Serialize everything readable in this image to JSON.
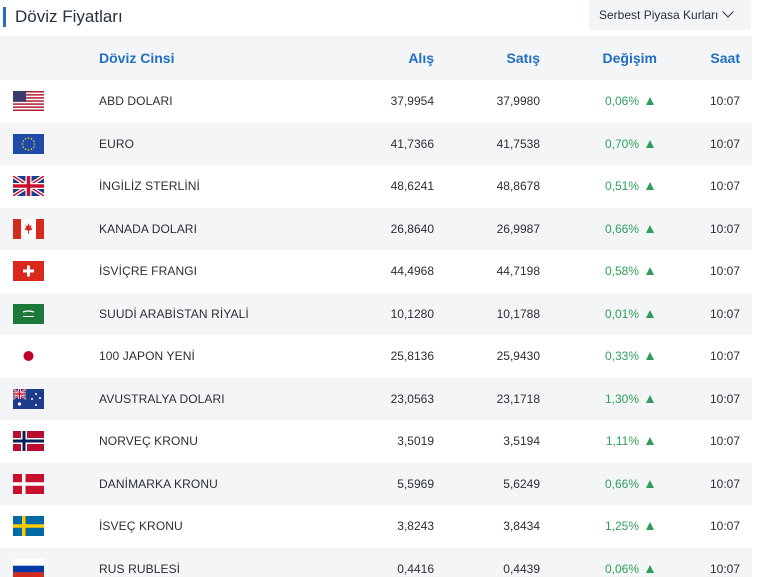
{
  "header": {
    "title": "Döviz Fiyatları",
    "market_select": "Serbest Piyasa Kurları"
  },
  "columns": {
    "currency": "Döviz Cinsi",
    "buy": "Alış",
    "sell": "Satış",
    "change": "Değişim",
    "time": "Saat"
  },
  "rows": [
    {
      "flag": "us-flag-icon",
      "name": "ABD DOLARI",
      "buy": "37,9954",
      "sell": "37,9980",
      "change": "0,06%",
      "trend": "up",
      "time": "10:07"
    },
    {
      "flag": "eu-flag-icon",
      "name": "EURO",
      "buy": "41,7366",
      "sell": "41,7538",
      "change": "0,70%",
      "trend": "up",
      "time": "10:07"
    },
    {
      "flag": "gb-flag-icon",
      "name": "İNGİLİZ STERLİNİ",
      "buy": "48,6241",
      "sell": "48,8678",
      "change": "0,51%",
      "trend": "up",
      "time": "10:07"
    },
    {
      "flag": "ca-flag-icon",
      "name": "KANADA DOLARI",
      "buy": "26,8640",
      "sell": "26,9987",
      "change": "0,66%",
      "trend": "up",
      "time": "10:07"
    },
    {
      "flag": "ch-flag-icon",
      "name": "İSVİÇRE FRANGI",
      "buy": "44,4968",
      "sell": "44,7198",
      "change": "0,58%",
      "trend": "up",
      "time": "10:07"
    },
    {
      "flag": "sa-flag-icon",
      "name": "SUUDİ ARABİSTAN RİYALİ",
      "buy": "10,1280",
      "sell": "10,1788",
      "change": "0,01%",
      "trend": "up",
      "time": "10:07"
    },
    {
      "flag": "jp-flag-icon",
      "name": "100 JAPON YENİ",
      "buy": "25,8136",
      "sell": "25,9430",
      "change": "0,33%",
      "trend": "up",
      "time": "10:07"
    },
    {
      "flag": "au-flag-icon",
      "name": "AVUSTRALYA DOLARI",
      "buy": "23,0563",
      "sell": "23,1718",
      "change": "1,30%",
      "trend": "up",
      "time": "10:07"
    },
    {
      "flag": "no-flag-icon",
      "name": "NORVEÇ KRONU",
      "buy": "3,5019",
      "sell": "3,5194",
      "change": "1,11%",
      "trend": "up",
      "time": "10:07"
    },
    {
      "flag": "dk-flag-icon",
      "name": "DANİMARKA KRONU",
      "buy": "5,5969",
      "sell": "5,6249",
      "change": "0,66%",
      "trend": "up",
      "time": "10:07"
    },
    {
      "flag": "se-flag-icon",
      "name": "İSVEÇ KRONU",
      "buy": "3,8243",
      "sell": "3,8434",
      "change": "1,25%",
      "trend": "up",
      "time": "10:07"
    },
    {
      "flag": "ru-flag-icon",
      "name": "RUS RUBLESİ",
      "buy": "0,4416",
      "sell": "0,4439",
      "change": "0,06%",
      "trend": "up",
      "time": "10:07"
    }
  ],
  "colors": {
    "accent": "#1f6fc2",
    "positive": "#2e9e5a",
    "row_alt": "#f4f5f7"
  }
}
